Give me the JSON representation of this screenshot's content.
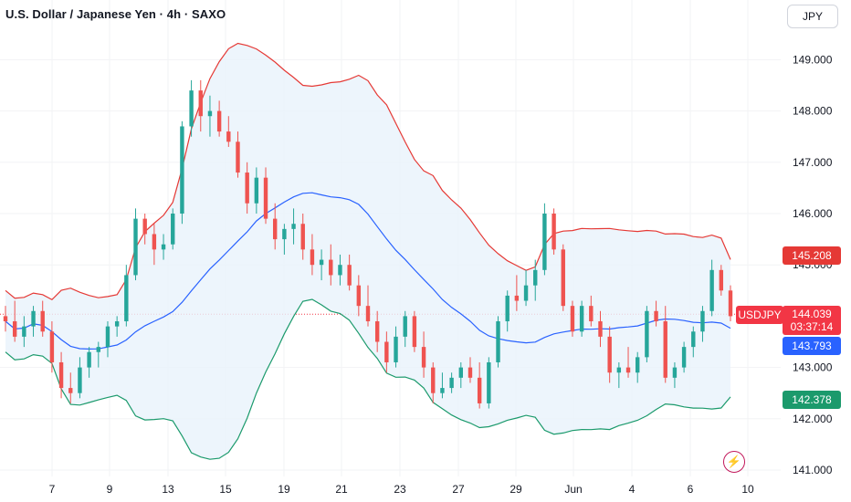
{
  "header": {
    "title": "U.S. Dollar / Japanese Yen · 4h · SAXO",
    "currency_button": "JPY"
  },
  "colors": {
    "bull": "#26a69a",
    "bear": "#ef5350",
    "upper_band": "#e53935",
    "lower_band": "#1b9a6c",
    "middle_band": "#2962ff",
    "band_fill": "#e8f2fb",
    "current_price": "#f23645"
  },
  "badges": {
    "upper": "145.208",
    "symbol": "USDJPY",
    "price": "144.039",
    "countdown": "03:37:14",
    "middle": "143.793",
    "lower": "142.378"
  },
  "icons": [
    "flash-icon"
  ],
  "chart_data": {
    "type": "candlestick",
    "indicator": "Bollinger Bands",
    "y_ticks": [
      "149.000",
      "148.000",
      "147.000",
      "146.000",
      "145.000",
      "143.000",
      "142.000",
      "141.000"
    ],
    "y_range": [
      141.0,
      150.0
    ],
    "x_ticks": [
      "7",
      "9",
      "13",
      "15",
      "19",
      "21",
      "23",
      "27",
      "29",
      "Jun",
      "4",
      "6",
      "10"
    ],
    "current_price": 144.039,
    "ohlc": [
      [
        144.0,
        144.2,
        143.7,
        143.9
      ],
      [
        143.9,
        144.3,
        143.5,
        143.6
      ],
      [
        143.6,
        144.0,
        143.4,
        143.8
      ],
      [
        143.8,
        144.2,
        143.6,
        144.1
      ],
      [
        144.1,
        144.3,
        143.6,
        143.7
      ],
      [
        143.7,
        143.9,
        142.9,
        143.1
      ],
      [
        143.1,
        143.3,
        142.4,
        142.6
      ],
      [
        142.6,
        142.9,
        142.3,
        142.5
      ],
      [
        142.5,
        143.2,
        142.4,
        143.0
      ],
      [
        143.0,
        143.4,
        142.8,
        143.3
      ],
      [
        143.3,
        143.5,
        143.0,
        143.4
      ],
      [
        143.4,
        143.9,
        143.2,
        143.8
      ],
      [
        143.8,
        144.0,
        143.6,
        143.9
      ],
      [
        143.9,
        145.0,
        143.8,
        144.8
      ],
      [
        144.8,
        146.1,
        144.7,
        145.9
      ],
      [
        145.9,
        146.0,
        145.4,
        145.6
      ],
      [
        145.6,
        145.8,
        145.0,
        145.3
      ],
      [
        145.3,
        145.6,
        145.1,
        145.4
      ],
      [
        145.4,
        146.1,
        145.3,
        146.0
      ],
      [
        146.0,
        147.8,
        145.8,
        147.7
      ],
      [
        147.7,
        148.6,
        147.5,
        148.4
      ],
      [
        148.4,
        148.6,
        147.6,
        147.9
      ],
      [
        147.9,
        148.3,
        147.5,
        148.0
      ],
      [
        148.0,
        148.2,
        147.5,
        147.6
      ],
      [
        147.6,
        147.9,
        147.3,
        147.4
      ],
      [
        147.4,
        147.6,
        146.7,
        146.8
      ],
      [
        146.8,
        147.0,
        146.0,
        146.2
      ],
      [
        146.2,
        146.9,
        146.0,
        146.7
      ],
      [
        146.7,
        146.9,
        145.8,
        145.9
      ],
      [
        145.9,
        146.2,
        145.3,
        145.5
      ],
      [
        145.5,
        145.8,
        145.2,
        145.7
      ],
      [
        145.7,
        146.1,
        145.4,
        145.8
      ],
      [
        145.8,
        146.0,
        145.1,
        145.3
      ],
      [
        145.3,
        145.6,
        144.8,
        145.0
      ],
      [
        145.0,
        145.3,
        144.7,
        145.1
      ],
      [
        145.1,
        145.4,
        144.6,
        144.8
      ],
      [
        144.8,
        145.2,
        144.6,
        145.0
      ],
      [
        145.0,
        145.2,
        144.5,
        144.6
      ],
      [
        144.6,
        144.8,
        144.0,
        144.2
      ],
      [
        144.2,
        144.6,
        143.8,
        143.9
      ],
      [
        143.9,
        144.1,
        143.3,
        143.5
      ],
      [
        143.5,
        143.7,
        142.9,
        143.1
      ],
      [
        143.1,
        143.8,
        143.0,
        143.6
      ],
      [
        143.6,
        144.1,
        143.4,
        144.0
      ],
      [
        144.0,
        144.1,
        143.3,
        143.4
      ],
      [
        143.4,
        143.7,
        142.8,
        143.0
      ],
      [
        143.0,
        143.1,
        142.3,
        142.5
      ],
      [
        142.5,
        142.9,
        142.4,
        142.6
      ],
      [
        142.6,
        142.9,
        142.5,
        142.8
      ],
      [
        142.8,
        143.1,
        142.6,
        143.0
      ],
      [
        143.0,
        143.2,
        142.7,
        142.8
      ],
      [
        142.8,
        143.1,
        142.2,
        142.3
      ],
      [
        142.3,
        143.2,
        142.2,
        143.1
      ],
      [
        143.1,
        144.0,
        143.0,
        143.9
      ],
      [
        143.9,
        144.5,
        143.7,
        144.4
      ],
      [
        144.4,
        144.8,
        144.1,
        144.3
      ],
      [
        144.3,
        144.9,
        144.2,
        144.6
      ],
      [
        144.6,
        145.1,
        144.3,
        144.9
      ],
      [
        144.9,
        146.2,
        144.8,
        146.0
      ],
      [
        146.0,
        146.1,
        145.2,
        145.3
      ],
      [
        145.3,
        145.4,
        144.1,
        144.2
      ],
      [
        144.2,
        144.3,
        143.6,
        143.7
      ],
      [
        143.7,
        144.3,
        143.6,
        144.2
      ],
      [
        144.2,
        144.4,
        143.8,
        143.9
      ],
      [
        143.9,
        144.1,
        143.4,
        143.6
      ],
      [
        143.6,
        143.8,
        142.7,
        142.9
      ],
      [
        142.9,
        143.1,
        142.6,
        143.0
      ],
      [
        143.0,
        143.4,
        142.8,
        142.9
      ],
      [
        142.9,
        143.3,
        142.7,
        143.2
      ],
      [
        143.2,
        144.2,
        143.1,
        144.1
      ],
      [
        144.1,
        144.3,
        143.8,
        143.9
      ],
      [
        143.9,
        144.2,
        142.7,
        142.8
      ],
      [
        142.8,
        143.1,
        142.6,
        143.0
      ],
      [
        143.0,
        143.5,
        142.9,
        143.4
      ],
      [
        143.4,
        143.8,
        143.2,
        143.7
      ],
      [
        143.7,
        144.2,
        143.5,
        144.1
      ],
      [
        144.1,
        145.1,
        144.0,
        144.9
      ],
      [
        144.9,
        145.0,
        144.4,
        144.5
      ],
      [
        144.5,
        144.6,
        143.9,
        144.0
      ]
    ]
  }
}
